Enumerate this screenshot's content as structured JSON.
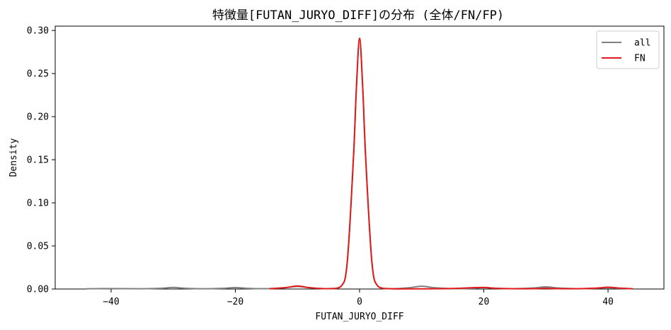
{
  "chart_data": {
    "type": "line",
    "title": "特徴量[FUTAN_JURYO_DIFF]の分布 (全体/FN/FP)",
    "xlabel": "FUTAN_JURYO_DIFF",
    "ylabel": "Density",
    "xlim": [
      -49,
      49
    ],
    "ylim": [
      0,
      0.305
    ],
    "xticks": [
      -40,
      -20,
      0,
      20,
      40
    ],
    "xtick_labels": [
      "−40",
      "−20",
      "0",
      "20",
      "40"
    ],
    "yticks": [
      0.0,
      0.05,
      0.1,
      0.15,
      0.2,
      0.25,
      0.3
    ],
    "ytick_labels": [
      "0.00",
      "0.05",
      "0.10",
      "0.15",
      "0.20",
      "0.25",
      "0.30"
    ],
    "grid": false,
    "legend_position": "top-right",
    "series": [
      {
        "name": "all",
        "color": "#808080",
        "x": [
          -44,
          -40,
          -35,
          -32,
          -30,
          -28,
          -25,
          -22,
          -20,
          -18,
          -15,
          -12,
          -10,
          -8,
          -5,
          -3,
          -2,
          -1,
          -0.5,
          0,
          0.5,
          1,
          2,
          3,
          5,
          8,
          10,
          12,
          15,
          18,
          20,
          22,
          25,
          28,
          30,
          32,
          35,
          38,
          40,
          42,
          44
        ],
        "y": [
          0.0003,
          0.0005,
          0.0003,
          0.0008,
          0.0018,
          0.0008,
          0.0003,
          0.0008,
          0.0016,
          0.0008,
          0.0004,
          0.0015,
          0.003,
          0.0015,
          0.0004,
          0.003,
          0.03,
          0.15,
          0.235,
          0.291,
          0.235,
          0.15,
          0.03,
          0.003,
          0.0004,
          0.0015,
          0.0033,
          0.0015,
          0.0004,
          0.0008,
          0.0016,
          0.0008,
          0.0004,
          0.0012,
          0.0025,
          0.0012,
          0.0004,
          0.0008,
          0.0015,
          0.0007,
          0.0003
        ]
      },
      {
        "name": "FN",
        "color": "#e31a1c",
        "x": [
          -14.5,
          -12,
          -10,
          -8,
          -5,
          -3,
          -2,
          -1,
          -0.5,
          0,
          0.5,
          1,
          2,
          3,
          5,
          8,
          10,
          12,
          15,
          18,
          20,
          22,
          25,
          28,
          30,
          32,
          35,
          38,
          40,
          42,
          44
        ],
        "y": [
          0.0003,
          0.0015,
          0.0035,
          0.0015,
          0.0004,
          0.003,
          0.03,
          0.15,
          0.235,
          0.291,
          0.235,
          0.15,
          0.03,
          0.003,
          0.0003,
          0.0002,
          0.0002,
          0.0003,
          0.0006,
          0.0014,
          0.0018,
          0.0008,
          0.0003,
          0.0004,
          0.0008,
          0.0004,
          0.0003,
          0.001,
          0.002,
          0.001,
          0.0003
        ]
      }
    ]
  }
}
